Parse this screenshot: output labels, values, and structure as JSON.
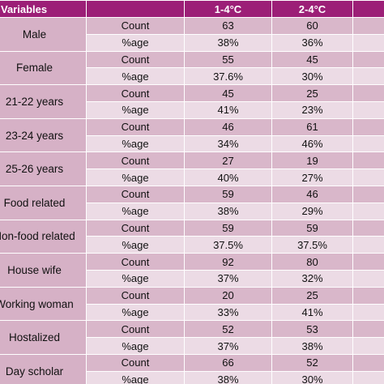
{
  "header": {
    "variables": "Variables",
    "col1": "1-4°C",
    "col2": "2-4°C",
    "col3": ""
  },
  "groups": [
    {
      "label": "Male",
      "count_label": "Count",
      "pct_label": "%age",
      "count": [
        "63",
        "60",
        ""
      ],
      "pct": [
        "38%",
        "36%",
        ""
      ]
    },
    {
      "label": "Female",
      "count_label": "Count",
      "pct_label": "%age",
      "count": [
        "55",
        "45",
        ""
      ],
      "pct": [
        "37.6%",
        "30%",
        ""
      ]
    },
    {
      "label": "21-22 years",
      "count_label": "Count",
      "pct_label": "%age",
      "count": [
        "45",
        "25",
        ""
      ],
      "pct": [
        "41%",
        "23%",
        ""
      ]
    },
    {
      "label": "23-24 years",
      "count_label": "Count",
      "pct_label": "%age",
      "count": [
        "46",
        "61",
        ""
      ],
      "pct": [
        "34%",
        "46%",
        ""
      ]
    },
    {
      "label": "25-26 years",
      "count_label": "Count",
      "pct_label": "%age",
      "count": [
        "27",
        "19",
        ""
      ],
      "pct": [
        "40%",
        "27%",
        ""
      ]
    },
    {
      "label": "Food related",
      "count_label": "Count",
      "pct_label": "%age",
      "count": [
        "59",
        "46",
        ""
      ],
      "pct": [
        "38%",
        "29%",
        ""
      ]
    },
    {
      "label": "Non-food related",
      "count_label": "Count",
      "pct_label": "%age",
      "count": [
        "59",
        "59",
        ""
      ],
      "pct": [
        "37.5%",
        "37.5%",
        ""
      ]
    },
    {
      "label": "House wife",
      "count_label": "Count",
      "pct_label": "%age",
      "count": [
        "92",
        "80",
        ""
      ],
      "pct": [
        "37%",
        "32%",
        ""
      ]
    },
    {
      "label": "Working woman",
      "count_label": "Count",
      "pct_label": "%age",
      "count": [
        "20",
        "25",
        ""
      ],
      "pct": [
        "33%",
        "41%",
        ""
      ]
    },
    {
      "label": "Hostalized",
      "count_label": "Count",
      "pct_label": "%age",
      "count": [
        "52",
        "53",
        ""
      ],
      "pct": [
        "37%",
        "38%",
        ""
      ]
    },
    {
      "label": "Day scholar",
      "count_label": "Count",
      "pct_label": "%age",
      "count": [
        "66",
        "52",
        ""
      ],
      "pct": [
        "38%",
        "30%",
        ""
      ]
    }
  ]
}
